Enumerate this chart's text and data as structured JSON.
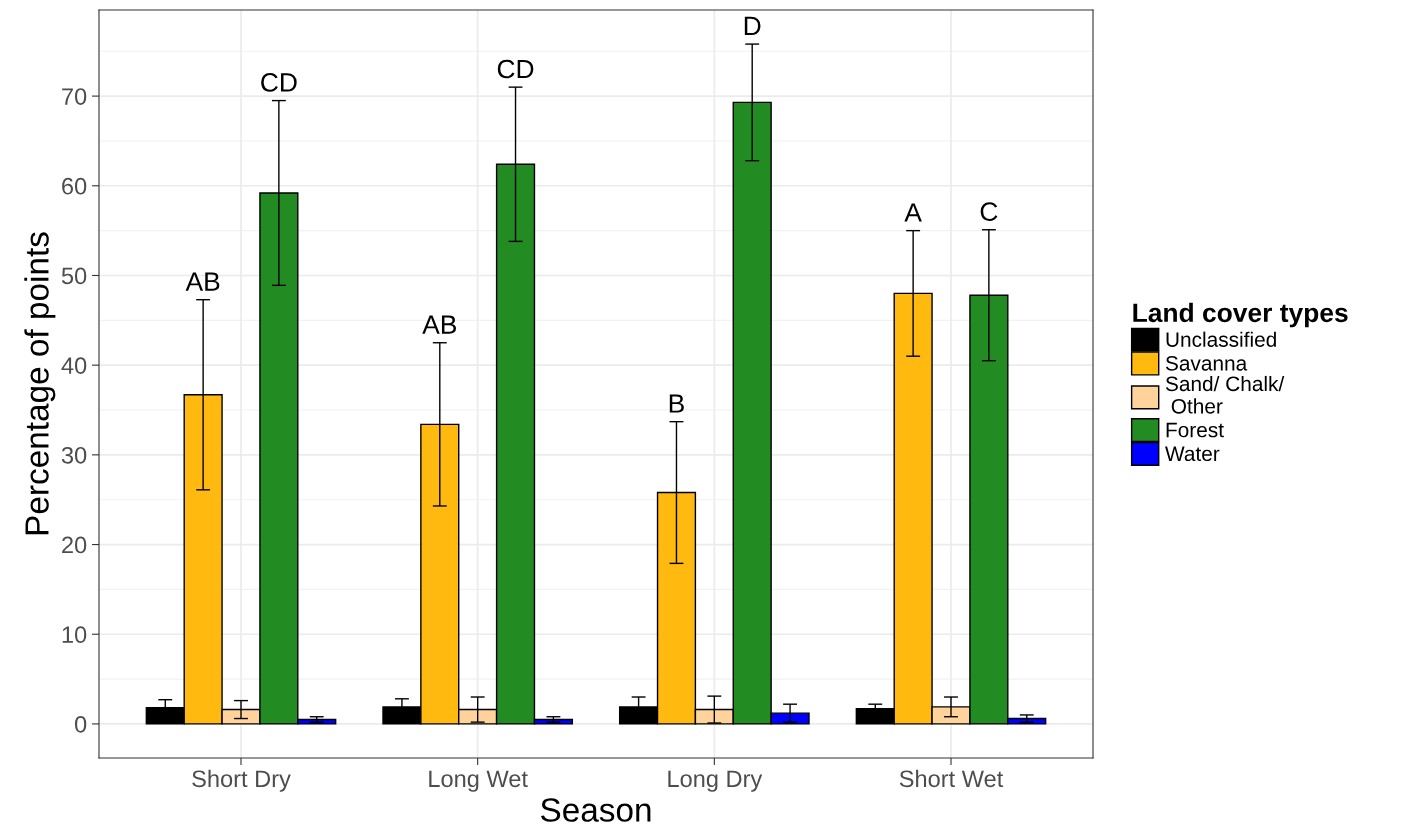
{
  "chart_data": {
    "type": "bar",
    "xlabel": "Season",
    "ylabel": "Percentage of points",
    "legend_title": "Land cover types",
    "categories": [
      "Short Dry",
      "Long Wet",
      "Long Dry",
      "Short Wet"
    ],
    "series": [
      {
        "name": "Unclassified",
        "color": "#000000",
        "values": [
          1.8,
          1.9,
          1.9,
          1.7
        ],
        "errors": [
          0.9,
          0.9,
          1.1,
          0.5
        ]
      },
      {
        "name": "Savanna",
        "color": "#ffb90f",
        "values": [
          36.7,
          33.4,
          25.8,
          48.0
        ],
        "errors": [
          10.6,
          9.1,
          7.9,
          7.0
        ]
      },
      {
        "name": "Sand/ Chalk/\n Other",
        "color": "#ffd39b",
        "values": [
          1.6,
          1.6,
          1.6,
          1.9
        ],
        "errors": [
          1.0,
          1.4,
          1.5,
          1.1
        ]
      },
      {
        "name": "Forest",
        "color": "#228b22",
        "values": [
          59.2,
          62.4,
          69.3,
          47.8
        ],
        "errors": [
          10.3,
          8.6,
          6.5,
          7.3
        ]
      },
      {
        "name": "Water",
        "color": "#0000ff",
        "values": [
          0.5,
          0.5,
          1.2,
          0.6
        ],
        "errors": [
          0.3,
          0.3,
          1.0,
          0.4
        ]
      }
    ],
    "ylim": [
      -3.8,
      79.6
    ],
    "yticks": [
      0,
      10,
      20,
      30,
      40,
      50,
      60,
      70
    ],
    "grid": true,
    "legend": "right",
    "annotations": [
      "AB",
      "CD",
      "AB",
      "CD",
      "B",
      "D",
      "A",
      "C"
    ]
  }
}
